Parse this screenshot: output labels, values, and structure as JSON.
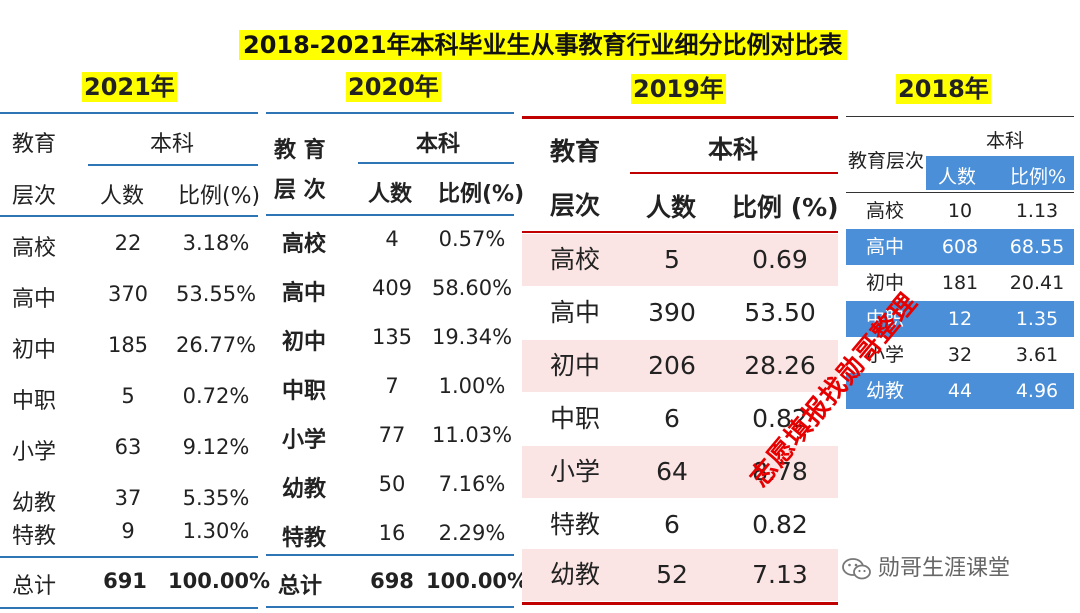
{
  "title": "2018-2021年本科毕业生从事教育行业细分比例对比表",
  "watermark": "志愿填报找勋哥整理",
  "credit": "勋哥生涯课堂",
  "t2021": {
    "year": "2021年",
    "h_edu": "教育",
    "h_level": "层次",
    "h_bk": "本科",
    "h_count": "人数",
    "h_ratio": "比例(%)",
    "rows": [
      {
        "level": "高校",
        "count": "22",
        "ratio": "3.18%"
      },
      {
        "level": "高中",
        "count": "370",
        "ratio": "53.55%"
      },
      {
        "level": "初中",
        "count": "185",
        "ratio": "26.77%"
      },
      {
        "level": "中职",
        "count": "5",
        "ratio": "0.72%"
      },
      {
        "level": "小学",
        "count": "63",
        "ratio": "9.12%"
      },
      {
        "level": "幼教",
        "count": "37",
        "ratio": "5.35%"
      },
      {
        "level": "特教",
        "count": "9",
        "ratio": "1.30%"
      }
    ],
    "total": {
      "level": "总计",
      "count": "691",
      "ratio": "100.00%"
    }
  },
  "t2020": {
    "year": "2020年",
    "h_edu": "教 育",
    "h_level": "层 次",
    "h_bk": "本科",
    "h_count": "人数",
    "h_ratio": "比例(%)",
    "rows": [
      {
        "level": "高校",
        "count": "4",
        "ratio": "0.57%"
      },
      {
        "level": "高中",
        "count": "409",
        "ratio": "58.60%"
      },
      {
        "level": "初中",
        "count": "135",
        "ratio": "19.34%"
      },
      {
        "level": "中职",
        "count": "7",
        "ratio": "1.00%"
      },
      {
        "level": "小学",
        "count": "77",
        "ratio": "11.03%"
      },
      {
        "level": "幼教",
        "count": "50",
        "ratio": "7.16%"
      },
      {
        "level": "特教",
        "count": "16",
        "ratio": "2.29%"
      }
    ],
    "total": {
      "level": "总计",
      "count": "698",
      "ratio": "100.00%"
    }
  },
  "t2019": {
    "year": "2019年",
    "h_edu": "教育",
    "h_level": "层次",
    "h_bk": "本科",
    "h_count": "人数",
    "h_ratio": "比例 (%)",
    "rows": [
      {
        "level": "高校",
        "count": "5",
        "ratio": "0.69"
      },
      {
        "level": "高中",
        "count": "390",
        "ratio": "53.50"
      },
      {
        "level": "初中",
        "count": "206",
        "ratio": "28.26"
      },
      {
        "level": "中职",
        "count": "6",
        "ratio": "0.82"
      },
      {
        "level": "小学",
        "count": "64",
        "ratio": "8.78"
      },
      {
        "level": "特教",
        "count": "6",
        "ratio": "0.82"
      },
      {
        "level": "幼教",
        "count": "52",
        "ratio": "7.13"
      }
    ]
  },
  "t2018": {
    "year": "2018年",
    "h_level": "教育层次",
    "h_bk": "本科",
    "h_count": "人数",
    "h_ratio": "比例%",
    "rows": [
      {
        "level": "高校",
        "count": "10",
        "ratio": "1.13"
      },
      {
        "level": "高中",
        "count": "608",
        "ratio": "68.55"
      },
      {
        "level": "初中",
        "count": "181",
        "ratio": "20.41"
      },
      {
        "level": "中职",
        "count": "12",
        "ratio": "1.35"
      },
      {
        "level": "小学",
        "count": "32",
        "ratio": "3.61"
      },
      {
        "level": "幼教",
        "count": "44",
        "ratio": "4.96"
      }
    ]
  },
  "colors": {
    "highlight": "#ffff00",
    "blue_rule": "#2e75b6",
    "red_rule": "#c00000",
    "pink_row": "#fbe4e4",
    "blue_row": "#4a8fd8",
    "watermark": "#e60000"
  }
}
